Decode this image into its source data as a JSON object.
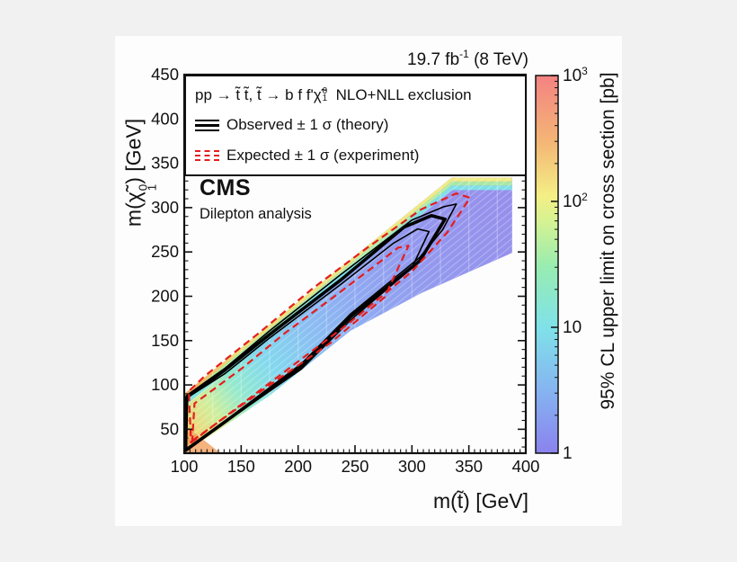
{
  "page_bg": "#f1f1f1",
  "canvas_bg": "#fdfdfd",
  "header": {
    "lumi_base": "19.7 fb",
    "lumi_sup": "-1",
    "lumi_energy": " (8 TeV)"
  },
  "legend": {
    "process_prefix": "pp → t̃ t̃, t̃ → b f f' ",
    "chi": "χ̃",
    "chi_sup": "0",
    "chi_sub": "1",
    "process_suffix": "  NLO+NLL exclusion",
    "observed_label": "Observed ± 1 σ (theory)",
    "expected_label": "Expected ± 1 σ (experiment)"
  },
  "watermark": {
    "experiment": "CMS",
    "analysis": "Dilepton analysis"
  },
  "x_axis": {
    "title": "m(t̃) [GeV]",
    "min": 100,
    "max": 400,
    "major_ticks": [
      100,
      150,
      200,
      250,
      300,
      350,
      400
    ],
    "minor_step": 5
  },
  "y_axis": {
    "title_prefix": "m(",
    "title_suffix": ") [GeV]",
    "min": 23,
    "max": 450,
    "major_ticks": [
      50,
      100,
      150,
      200,
      250,
      300,
      350,
      400,
      450
    ],
    "minor_step": 10
  },
  "colorbar": {
    "title": "95% CL upper limit on cross section [pb]",
    "scale": "log",
    "min": 1,
    "max": 1000,
    "tick_labels": [
      {
        "base": "1",
        "sup": "",
        "value": 1
      },
      {
        "base": "10",
        "sup": "",
        "value": 10
      },
      {
        "base": "10",
        "sup": "2",
        "value": 100
      },
      {
        "base": "10",
        "sup": "3",
        "value": 1000
      }
    ],
    "stops": [
      {
        "value": 1,
        "color": "#8a82ee"
      },
      {
        "value": 3,
        "color": "#86b2f1"
      },
      {
        "value": 10,
        "color": "#7fe2e9"
      },
      {
        "value": 30,
        "color": "#97ecb1"
      },
      {
        "value": 70,
        "color": "#d6f292"
      },
      {
        "value": 110,
        "color": "#f4ef85"
      },
      {
        "value": 300,
        "color": "#f4b575"
      },
      {
        "value": 1000,
        "color": "#f48282"
      }
    ]
  },
  "chart_data": {
    "type": "heatmap",
    "title": "95% CL upper limit on stop pair production cross section, dilepton analysis",
    "x_range": [
      100,
      400
    ],
    "y_range": [
      23,
      450
    ],
    "band": {
      "description": "Diagonal band of cross-section upper limits in the m(stop)-m(neutralino) plane, roughly between Δm=10 GeV and Δm=80 GeV",
      "outline_gev": [
        [
          100,
          90
        ],
        [
          335,
          334
        ],
        [
          388,
          334
        ],
        [
          388,
          249
        ],
        [
          309,
          204
        ],
        [
          246,
          161
        ],
        [
          175,
          88
        ],
        [
          100,
          23
        ]
      ],
      "gradient_axis_gev": [
        [
          100,
          23
        ],
        [
          388,
          290
        ]
      ],
      "gradient_stops": [
        {
          "t": 0.0,
          "color": "#f5a85e"
        },
        {
          "t": 0.05,
          "color": "#efd878"
        },
        {
          "t": 0.12,
          "color": "#cfee9c"
        },
        {
          "t": 0.2,
          "color": "#93e9cf"
        },
        {
          "t": 0.3,
          "color": "#82d8ee"
        },
        {
          "t": 0.44,
          "color": "#8bbcf2"
        },
        {
          "t": 0.58,
          "color": "#90a8f1"
        },
        {
          "t": 0.75,
          "color": "#9399ee"
        },
        {
          "t": 1.0,
          "color": "#9690ec"
        }
      ],
      "edge_stripe_colors": [
        "#f0e07a",
        "#abeca0",
        "#7de4e8"
      ],
      "edge_stripe_left_color": "#f2a95c",
      "corner_patch_gev": [
        [
          100,
          23
        ],
        [
          100,
          55
        ],
        [
          132,
          23
        ]
      ],
      "corner_patch_color": "#f29a55",
      "bin_line_step_gev": 25
    },
    "contours": {
      "observed": {
        "color": "#000000",
        "style": "solid",
        "width": 3.6,
        "points_gev": [
          [
            101,
            26
          ],
          [
            203,
            121
          ],
          [
            246,
            177
          ],
          [
            307,
            240
          ],
          [
            329,
            287
          ],
          [
            317,
            291
          ],
          [
            293,
            278
          ],
          [
            238,
            219
          ],
          [
            175,
            157
          ],
          [
            135,
            116
          ],
          [
            102,
            86
          ]
        ]
      },
      "observed_theory_band": [
        {
          "color": "#000000",
          "style": "solid",
          "width": 1.6,
          "points_gev": [
            [
              102,
              27
            ],
            [
              203,
              124
            ],
            [
              246,
              180
            ],
            [
              307,
              244
            ],
            [
              327,
              275
            ],
            [
              339,
              304
            ],
            [
              328,
              301
            ],
            [
              300,
              286
            ],
            [
              238,
              225
            ],
            [
              175,
              161
            ],
            [
              136,
              119
            ],
            [
              102,
              88
            ]
          ]
        },
        {
          "color": "#000000",
          "style": "solid",
          "width": 1.6,
          "points_gev": [
            [
              102,
              28
            ],
            [
              203,
              118
            ],
            [
              246,
              173
            ],
            [
              300,
              232
            ],
            [
              315,
              273
            ],
            [
              305,
              276
            ],
            [
              284,
              260
            ],
            [
              238,
              214
            ],
            [
              175,
              153
            ],
            [
              136,
              113
            ],
            [
              103,
              86
            ]
          ]
        }
      ],
      "expected": {
        "color": "#e41e1e",
        "style": "dashed",
        "width": 2.2,
        "loops_gev": [
          [
            [
              106,
              35
            ],
            [
              181,
              108
            ],
            [
              244,
              169
            ],
            [
              300,
              228
            ],
            [
              331,
              272
            ],
            [
              351,
              311
            ],
            [
              339,
              316
            ],
            [
              308,
              298
            ],
            [
              260,
              254
            ],
            [
              213,
              209
            ],
            [
              166,
              159
            ],
            [
              118,
              110
            ],
            [
              104,
              93
            ]
          ],
          [
            [
              107,
              37
            ],
            [
              173,
              98
            ],
            [
              229,
              148
            ],
            [
              276,
              199
            ],
            [
              297,
              257
            ],
            [
              288,
              255
            ],
            [
              268,
              235
            ],
            [
              229,
              197
            ],
            [
              189,
              159
            ],
            [
              150,
              118
            ],
            [
              109,
              79
            ]
          ]
        ]
      }
    }
  }
}
